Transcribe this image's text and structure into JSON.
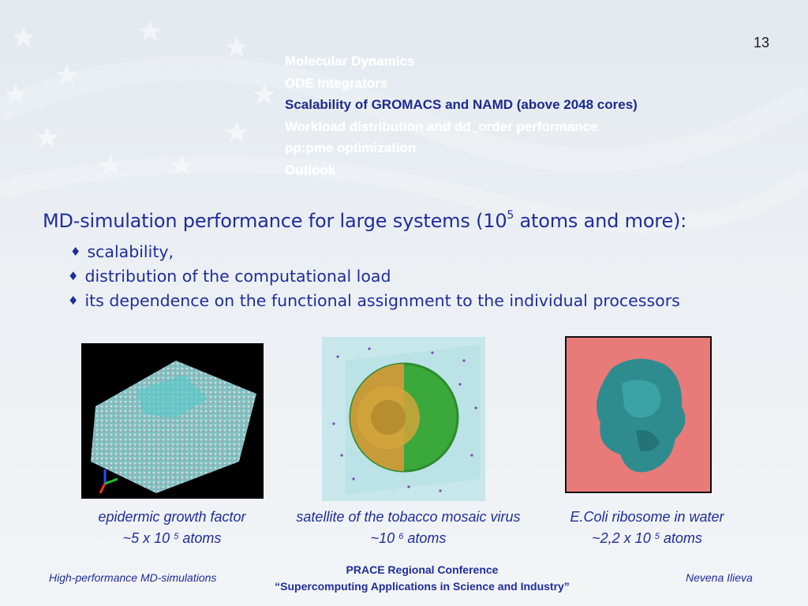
{
  "slide_number": "13",
  "agenda": [
    {
      "label": "Molecular Dynamics",
      "active": false
    },
    {
      "label": "ODE Integrators",
      "active": false
    },
    {
      "label": "Scalability of GROMACS and NAMD (above 2048 cores)",
      "active": true
    },
    {
      "label": "Workload distribution and dd_order performance",
      "active": false
    },
    {
      "label": "pp:pme optimization",
      "active": false
    },
    {
      "label": "Outlook",
      "active": false
    }
  ],
  "main_line": {
    "before": "MD-simulation performance for large systems (10",
    "exponent": "5",
    "after": " atoms and more):"
  },
  "bullets": [
    "scalability,",
    "distribution of the computational load",
    "its dependence on the functional assignment to the individual processors"
  ],
  "bullet_symbol": "♦",
  "figures": [
    {
      "name": "epidermic growth factor",
      "size_prefix": "~5 x 10 ",
      "exponent": "5",
      "size_suffix": " atoms"
    },
    {
      "name": "satellite of the tobacco mosaic virus",
      "size_prefix": "~10 ",
      "exponent": "6",
      "size_suffix": " atoms"
    },
    {
      "name": "E.Coli ribosome in water",
      "size_prefix": "~2,2 x 10 ",
      "exponent": "5",
      "size_suffix": " atoms"
    }
  ],
  "footer": {
    "left": "High-performance MD-simulations",
    "center_line1": "PRACE Regional Conference",
    "center_line2": "“Supercomputing Applications in Science and Industry”",
    "right": "Nevena Ilieva"
  },
  "colors": {
    "text_blue": "#1f2d9b",
    "agenda_active": "#1d2a8c",
    "ribosome_bg": "#e87a7a",
    "ribosome_molecule": "#2e8c8f",
    "virus_green": "#3aa83a",
    "water_box": "#bfe3e6"
  },
  "icons": [
    "diamond-bullet-icon",
    "star-watermark-icon"
  ]
}
